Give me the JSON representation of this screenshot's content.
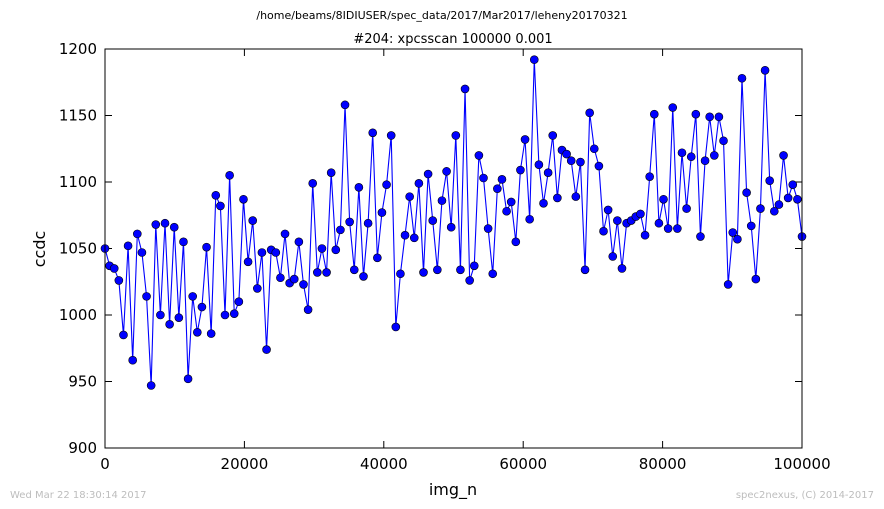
{
  "header": {
    "path": "/home/beams/8IDIUSER/spec_data/2017/Mar2017/leheny20170321",
    "scan_title": "#204: xpcsscan 100000 0.001"
  },
  "footer": {
    "timestamp": "Wed Mar 22 18:30:14 2017",
    "credit": "spec2nexus, (C) 2014-2017"
  },
  "chart_data": {
    "type": "line",
    "title": "#204: xpcsscan 100000 0.001",
    "xlabel": "img_n",
    "ylabel": "ccdc",
    "xlim": [
      0,
      100000
    ],
    "ylim": [
      900,
      1200
    ],
    "xticks": [
      0,
      20000,
      40000,
      60000,
      80000,
      100000
    ],
    "yticks": [
      900,
      950,
      1000,
      1050,
      1100,
      1150,
      1200
    ],
    "grid": false,
    "marker": "circle",
    "color": "#0000ff",
    "series": [
      {
        "values": [
          1050,
          1037,
          1035,
          1026,
          985,
          1052,
          966,
          1061,
          1047,
          1014,
          947,
          1068,
          1000,
          1069,
          993,
          1066,
          998,
          1055,
          952,
          1014,
          987,
          1006,
          1051,
          986,
          1090,
          1082,
          1000,
          1105,
          1001,
          1010,
          1087,
          1040,
          1071,
          1020,
          1047,
          974,
          1049,
          1047,
          1028,
          1061,
          1024,
          1027,
          1055,
          1023,
          1004,
          1099,
          1032,
          1050,
          1032,
          1107,
          1049,
          1064,
          1158,
          1070,
          1034,
          1096,
          1029,
          1069,
          1137,
          1043,
          1077,
          1098,
          1135,
          991,
          1031,
          1060,
          1089,
          1058,
          1099,
          1032,
          1106,
          1071,
          1034,
          1086,
          1108,
          1066,
          1135,
          1034,
          1170,
          1026,
          1037,
          1120,
          1103,
          1065,
          1031,
          1095,
          1102,
          1078,
          1085,
          1055,
          1109,
          1132,
          1072,
          1192,
          1113,
          1084,
          1107,
          1135,
          1088,
          1124,
          1121,
          1116,
          1089,
          1115,
          1034,
          1152,
          1125,
          1112,
          1063,
          1079,
          1044,
          1071,
          1035,
          1069,
          1071,
          1074,
          1076,
          1060,
          1104,
          1151,
          1069,
          1087,
          1065,
          1156,
          1065,
          1122,
          1080,
          1119,
          1151,
          1059,
          1116,
          1149,
          1120,
          1149,
          1131,
          1023,
          1062,
          1057,
          1178,
          1092,
          1067,
          1027,
          1080,
          1184,
          1101,
          1078,
          1083,
          1120,
          1088,
          1098,
          1087,
          1059
        ]
      }
    ]
  }
}
